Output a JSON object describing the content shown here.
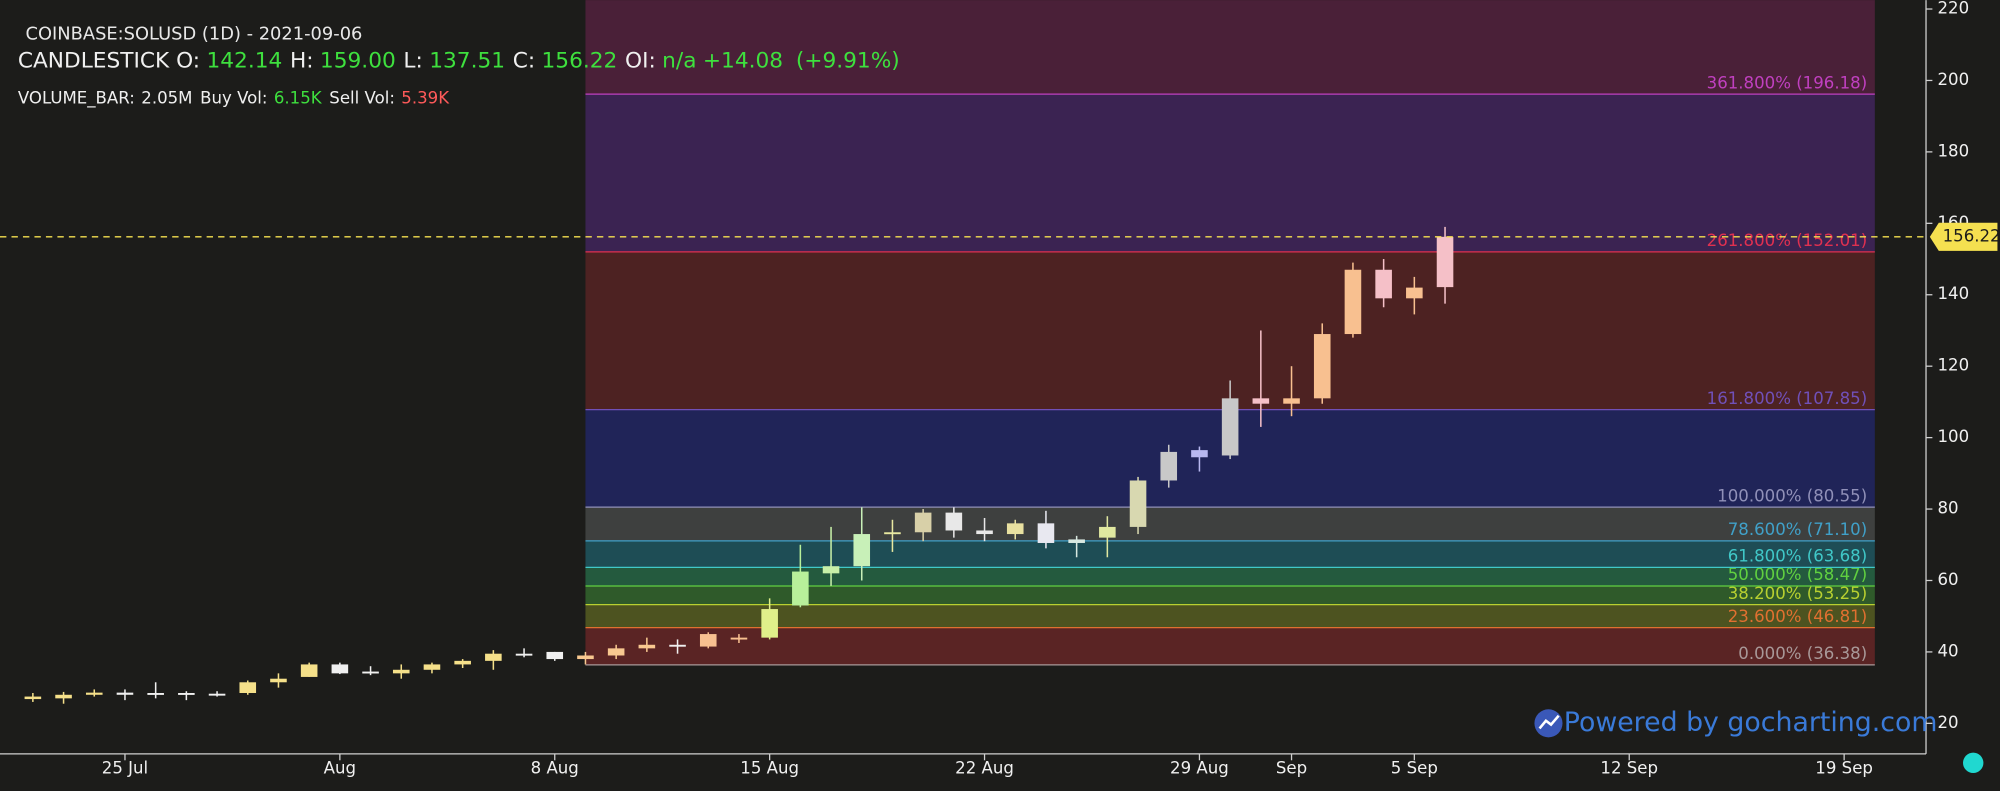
{
  "header": {
    "symbol": "COINBASE:SOLUSD (1D) - 2021-09-06",
    "ohlc": [
      {
        "label": "CANDLESTICK O:",
        "value": "142.14",
        "color": "#3ee03e"
      },
      {
        "label": "H:",
        "value": "159.00",
        "color": "#3ee03e"
      },
      {
        "label": "L:",
        "value": "137.51",
        "color": "#3ee03e"
      },
      {
        "label": "C:",
        "value": "156.22",
        "color": "#3ee03e"
      },
      {
        "label": "OI:",
        "value": "n/a",
        "color": "#3ee03e"
      }
    ],
    "change": "+14.08",
    "change_pct": "(+9.91%)",
    "change_color": "#3ee03e",
    "volume": [
      {
        "label": "VOLUME_BAR:",
        "value": "2.05M",
        "color": "#f0f0f0"
      },
      {
        "label": "Buy Vol:",
        "value": "6.15K",
        "color": "#3ee03e"
      },
      {
        "label": "Sell Vol:",
        "value": "5.39K",
        "color": "#ff5a5a"
      }
    ]
  },
  "watermark": "Powered by gocharting.com",
  "chart_data": {
    "type": "candlestick",
    "x": [
      "2021-07-22",
      "2021-07-23",
      "2021-07-24",
      "2021-07-25",
      "2021-07-26",
      "2021-07-27",
      "2021-07-28",
      "2021-07-29",
      "2021-07-30",
      "2021-07-31",
      "2021-08-01",
      "2021-08-02",
      "2021-08-03",
      "2021-08-04",
      "2021-08-05",
      "2021-08-06",
      "2021-08-07",
      "2021-08-08",
      "2021-08-09",
      "2021-08-10",
      "2021-08-11",
      "2021-08-12",
      "2021-08-13",
      "2021-08-14",
      "2021-08-15",
      "2021-08-16",
      "2021-08-17",
      "2021-08-18",
      "2021-08-19",
      "2021-08-20",
      "2021-08-21",
      "2021-08-22",
      "2021-08-23",
      "2021-08-24",
      "2021-08-25",
      "2021-08-26",
      "2021-08-27",
      "2021-08-28",
      "2021-08-29",
      "2021-08-30",
      "2021-08-31",
      "2021-09-01",
      "2021-09-02",
      "2021-09-03",
      "2021-09-04",
      "2021-09-05",
      "2021-09-06"
    ],
    "open": [
      27.5,
      27,
      28,
      28.6,
      28,
      28.5,
      28,
      28.5,
      31.5,
      33,
      36.5,
      34.5,
      34,
      35,
      36.5,
      37.5,
      39.5,
      40,
      38,
      39,
      41,
      42,
      41.5,
      44,
      44,
      53,
      62,
      64,
      73,
      73.5,
      79,
      74,
      73,
      76,
      70.5,
      72,
      75,
      88,
      94.5,
      95,
      111,
      109.5,
      111,
      129,
      147,
      139,
      142.14
    ],
    "high": [
      28.5,
      28.8,
      29.5,
      29.5,
      31.5,
      29,
      29,
      32,
      34,
      37,
      37,
      36,
      36.5,
      37,
      38,
      40.5,
      41,
      40,
      40,
      42,
      44,
      43.5,
      45.5,
      45,
      55,
      70,
      75,
      80.5,
      77,
      80,
      80.5,
      77.5,
      77,
      79.5,
      72.5,
      78,
      89,
      98,
      97.5,
      116,
      130,
      120,
      132,
      149,
      150,
      145,
      159
    ],
    "low": [
      26,
      25.5,
      27.5,
      26.5,
      27,
      26.5,
      27.5,
      28,
      30,
      33,
      33.8,
      33.5,
      32.5,
      34,
      35.5,
      35,
      38.5,
      37.5,
      36.5,
      38,
      40,
      39.5,
      41,
      42.5,
      43.5,
      52.5,
      58.5,
      60,
      68,
      71,
      72,
      71,
      71.5,
      69,
      66.5,
      66.5,
      73,
      86,
      90.5,
      94,
      103,
      106,
      109.5,
      128,
      136.5,
      134.5,
      137.51
    ],
    "close": [
      26.8,
      28,
      28.6,
      28,
      28.5,
      28,
      28.3,
      31.5,
      32.5,
      36.5,
      34,
      34,
      35,
      36.5,
      37.5,
      39.5,
      39.5,
      38,
      39,
      41,
      42,
      41.5,
      45,
      44,
      52,
      62.5,
      64,
      73,
      73.5,
      79,
      74,
      73,
      76,
      70.5,
      71.5,
      75,
      88,
      96,
      96.5,
      111,
      109.5,
      111,
      129,
      147,
      139,
      142,
      156.22
    ],
    "colors": [
      "#f5e08a",
      "#f5e08a",
      "#f5e08a",
      "#f0f0f0",
      "#f0f0f0",
      "#f0f0f0",
      "#f0f0f0",
      "#f5e08a",
      "#f5e08a",
      "#f5e08a",
      "#f0f0f0",
      "#f0f0f0",
      "#f5e08a",
      "#f5e08a",
      "#f5e08a",
      "#f5e08a",
      "#f0f0f0",
      "#f0f0f0",
      "#f8c890",
      "#f8c890",
      "#f8c890",
      "#f0f0f0",
      "#f8c090",
      "#f8c090",
      "#e0f08a",
      "#b8f09a",
      "#c8f0a8",
      "#c8f0b8",
      "#e8e8a0",
      "#d8d0a8",
      "#e8e8e8",
      "#e8e8e8",
      "#e8e0a0",
      "#e8e8f0",
      "#d8e8e0",
      "#e0e8a0",
      "#d8d8b0",
      "#c8c8c8",
      "#b8b8f0",
      "#c8c8c8",
      "#f5c0c8",
      "#f8c090",
      "#f8c090",
      "#f8c090",
      "#f5c0c8",
      "#f8c090",
      "#f5c0c8"
    ],
    "xlim": [
      "2021-07-21",
      "2021-09-22"
    ],
    "xticks": [
      {
        "value": "2021-07-25",
        "label": "25 Jul"
      },
      {
        "value": "2021-08-01",
        "label": "Aug"
      },
      {
        "value": "2021-08-08",
        "label": "8 Aug"
      },
      {
        "value": "2021-08-15",
        "label": "15 Aug"
      },
      {
        "value": "2021-08-22",
        "label": "22 Aug"
      },
      {
        "value": "2021-08-29",
        "label": "29 Aug"
      },
      {
        "value": "2021-09-01",
        "label": "Sep"
      },
      {
        "value": "2021-09-05",
        "label": "5 Sep"
      },
      {
        "value": "2021-09-12",
        "label": "12 Sep"
      },
      {
        "value": "2021-09-19",
        "label": "19 Sep"
      }
    ],
    "ylim": [
      11.8,
      222.5
    ],
    "yticks": [
      20,
      40,
      60,
      80,
      100,
      120,
      140,
      160,
      180,
      200,
      220
    ],
    "last_price_color": "#f5e050",
    "fibonacci": {
      "x": [
        "2021-08-09",
        "2021-09-20"
      ],
      "levels": [
        {
          "value": 36.38,
          "label": "0.000% (36.38)",
          "color": "#a89898",
          "fill": "#5a2424"
        },
        {
          "value": 46.81,
          "label": "23.600% (46.81)",
          "color": "#e07030",
          "fill": "#4d5320"
        },
        {
          "value": 53.25,
          "label": "38.200% (53.25)",
          "color": "#b8d030",
          "fill": "#2f5a2a"
        },
        {
          "value": 58.47,
          "label": "50.000% (58.47)",
          "color": "#60d040",
          "fill": "#245a3e"
        },
        {
          "value": 63.68,
          "label": "61.800% (63.68)",
          "color": "#40c8c8",
          "fill": "#1e4d55"
        },
        {
          "value": 71.1,
          "label": "78.600% (71.10)",
          "color": "#40a0c8",
          "fill": "#3e403f"
        },
        {
          "value": 80.55,
          "label": "100.000% (80.55)",
          "color": "#9090b8",
          "fill": "#202458"
        },
        {
          "value": 107.85,
          "label": "161.800% (107.85)",
          "color": "#7050b8",
          "fill": "#4d2222"
        },
        {
          "value": 152.01,
          "label": "261.800% (152.01)",
          "color": "#e03050",
          "fill": "#3b2352"
        },
        {
          "value": 196.18,
          "label": "361.800% (196.18)",
          "color": "#c040c0",
          "fill": "#4a2038"
        }
      ]
    }
  }
}
